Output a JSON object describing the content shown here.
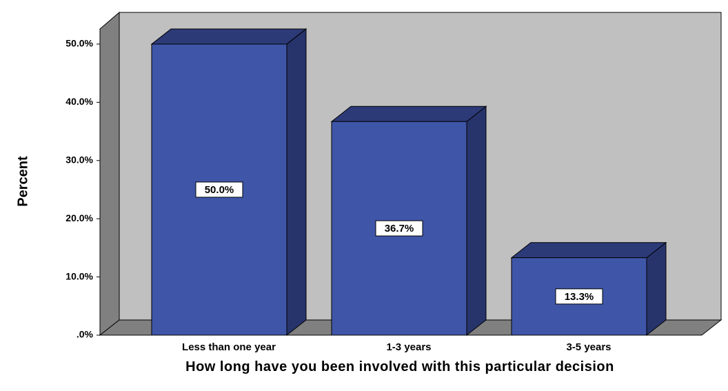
{
  "chart_data": {
    "type": "bar3d",
    "categories": [
      "Less than one year",
      "1-3 years",
      "3-5 years"
    ],
    "values": [
      50.0,
      36.7,
      13.3
    ],
    "value_labels": [
      "50.0%",
      "36.7%",
      "13.3%"
    ],
    "color": "#3f56a8",
    "ylabel": "Percent",
    "xlabel": "How long have you been involved with this particular decision",
    "ylim": [
      0,
      52.6
    ],
    "yticks": [
      {
        "value": 0,
        "label": ".0%"
      },
      {
        "value": 10,
        "label": "10.0%"
      },
      {
        "value": 20,
        "label": "20.0%"
      },
      {
        "value": 30,
        "label": "30.0%"
      },
      {
        "value": 40,
        "label": "40.0%"
      },
      {
        "value": 50,
        "label": "50.0%"
      }
    ]
  }
}
